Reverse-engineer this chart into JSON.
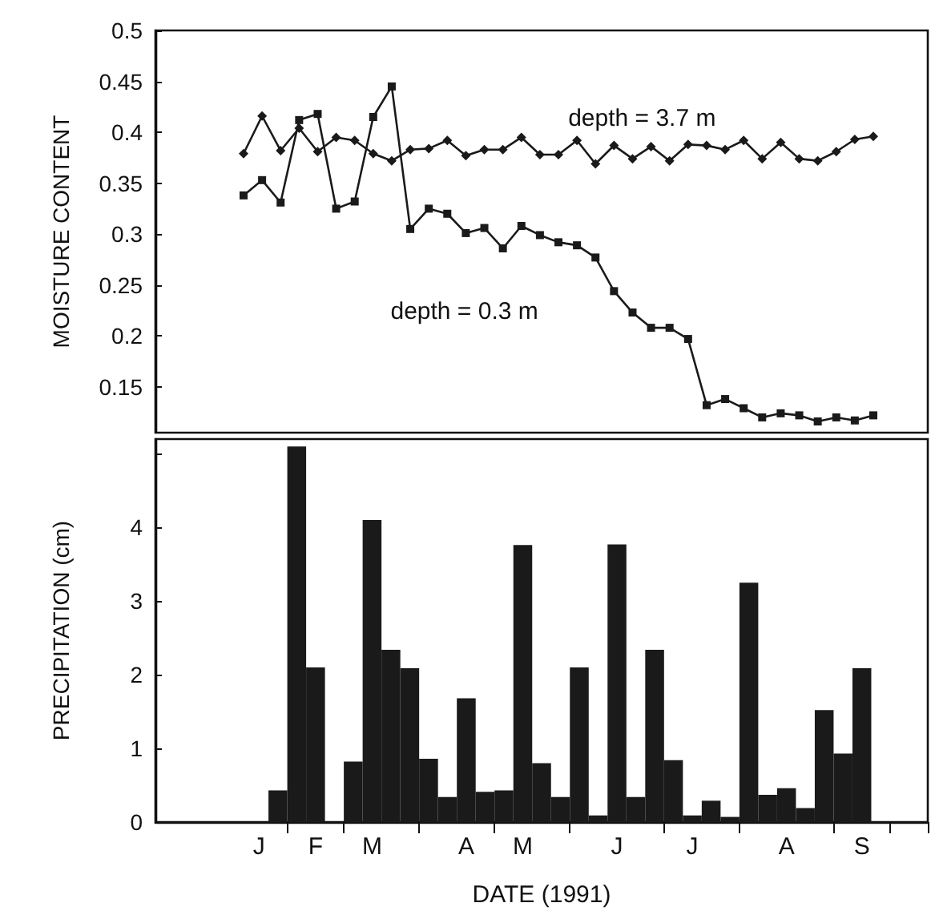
{
  "chart_data": [
    {
      "type": "line",
      "ylabel": "MOISTURE CONTENT",
      "categories": [
        null,
        null,
        null,
        null,
        null,
        null,
        null,
        null,
        null,
        null,
        null,
        null,
        null,
        null,
        null,
        null,
        null,
        null,
        null,
        null,
        null,
        null,
        null,
        null,
        null,
        null,
        null,
        null,
        null,
        null,
        null,
        null,
        null,
        null,
        null
      ],
      "ylim": [
        0.105,
        0.5
      ],
      "yticks": [
        0.5,
        0.45,
        0.4,
        0.35,
        0.3,
        0.25,
        0.2,
        0.15
      ],
      "tick_labels": "y",
      "line_style": "solid",
      "series": [
        {
          "color": "#1a1a1a",
          "marker": "diamond",
          "values": [
            0.379,
            0.416,
            0.382,
            0.404,
            0.381,
            0.395,
            0.392,
            0.379,
            0.372,
            0.383,
            0.384,
            0.392,
            0.377,
            0.383,
            0.383,
            0.395,
            0.378,
            0.378,
            0.392,
            0.369,
            0.387,
            0.374,
            0.386,
            0.372,
            0.388,
            0.387,
            0.383,
            0.392,
            0.374,
            0.39,
            0.374,
            0.372,
            0.381,
            0.393,
            0.396
          ]
        },
        {
          "color": "#1a1a1a",
          "marker": "square",
          "values": [
            0.338,
            0.353,
            0.331,
            0.412,
            0.418,
            0.325,
            0.332,
            0.415,
            0.445,
            0.305,
            0.325,
            0.32,
            0.301,
            0.306,
            0.286,
            0.308,
            0.299,
            0.292,
            0.289,
            0.277,
            0.244,
            0.223,
            0.208,
            0.208,
            0.197,
            0.132,
            0.138,
            0.129,
            0.12,
            0.124,
            0.122,
            0.116,
            0.12,
            0.117,
            0.122
          ]
        }
      ],
      "annotations": [
        "depth = 3.7 m",
        "depth = 0.3 m"
      ]
    },
    {
      "type": "bar",
      "xlabel": "DATE (1991)",
      "ylabel": "PRECIPITATION (cm)",
      "color": "#1a1a1a",
      "ylim": [
        0,
        5.2
      ],
      "categories": [
        null,
        null,
        null,
        null,
        null,
        "J",
        null,
        null,
        "F",
        null,
        null,
        "M",
        null,
        null,
        null,
        null,
        "A",
        null,
        null,
        "M",
        null,
        null,
        null,
        null,
        "J",
        null,
        null,
        null,
        "J",
        null,
        null,
        null,
        null,
        "A",
        null,
        null,
        null,
        "S",
        null,
        null,
        null
      ],
      "values": [
        null,
        null,
        null,
        null,
        null,
        null,
        0.43,
        5.1,
        2.1,
        0,
        0.82,
        4.1,
        2.34,
        2.09,
        0.86,
        0.34,
        1.68,
        0.41,
        0.43,
        3.76,
        0.8,
        0.34,
        2.1,
        0.09,
        3.77,
        0.34,
        2.34,
        0.84,
        0.09,
        0.29,
        0.07,
        3.25,
        0.37,
        0.46,
        0.19,
        1.52,
        0.93,
        2.09,
        null,
        null,
        null
      ],
      "yticks": [
        0,
        1,
        2,
        3,
        4,
        {
          "value": 5,
          "label": null
        }
      ]
    }
  ]
}
